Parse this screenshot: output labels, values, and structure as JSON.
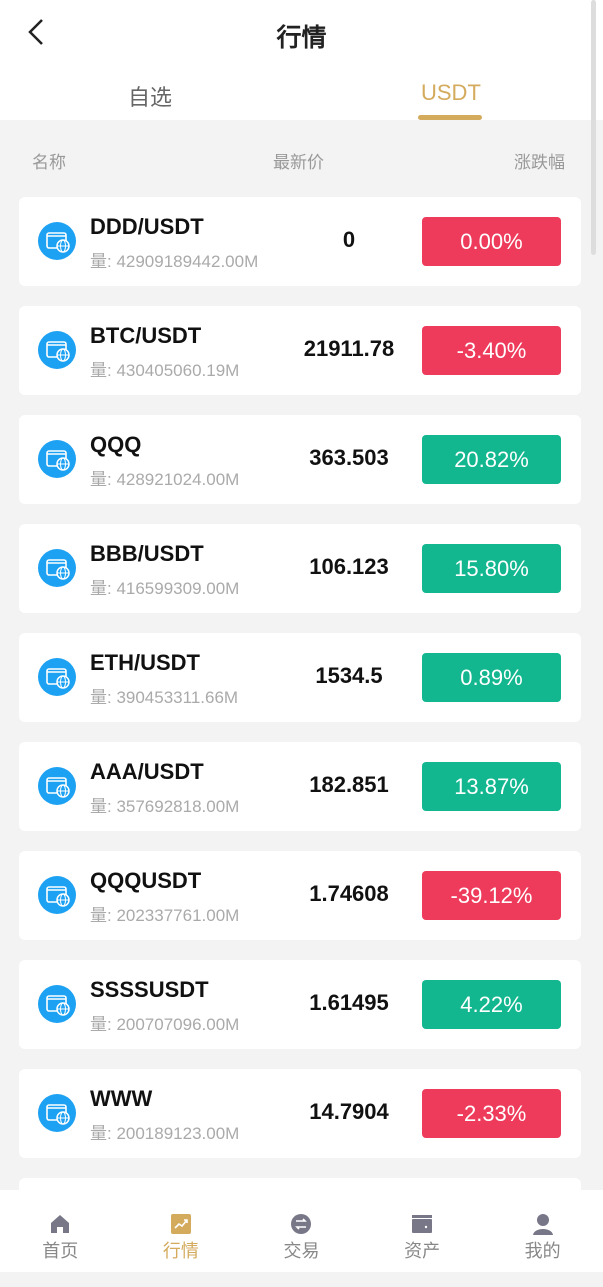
{
  "header": {
    "title": "行情",
    "tabs": [
      {
        "label": "自选",
        "active": false
      },
      {
        "label": "USDT",
        "active": true
      }
    ]
  },
  "columns": {
    "name": "名称",
    "price": "最新价",
    "change": "涨跌幅"
  },
  "colors": {
    "accent": "#d4aa5c",
    "up": "#12b78f",
    "down": "#ee3b5b",
    "icon": "#1da1f2"
  },
  "rows": [
    {
      "name": "DDD/USDT",
      "volume": "量: 42909189442.00M",
      "price": "0",
      "change": "0.00%",
      "dir": "down"
    },
    {
      "name": "BTC/USDT",
      "volume": "量: 430405060.19M",
      "price": "21911.78",
      "change": "-3.40%",
      "dir": "down"
    },
    {
      "name": "QQQ",
      "volume": "量: 428921024.00M",
      "price": "363.503",
      "change": "20.82%",
      "dir": "up"
    },
    {
      "name": "BBB/USDT",
      "volume": "量: 416599309.00M",
      "price": "106.123",
      "change": "15.80%",
      "dir": "up"
    },
    {
      "name": "ETH/USDT",
      "volume": "量: 390453311.66M",
      "price": "1534.5",
      "change": "0.89%",
      "dir": "up"
    },
    {
      "name": "AAA/USDT",
      "volume": "量: 357692818.00M",
      "price": "182.851",
      "change": "13.87%",
      "dir": "up"
    },
    {
      "name": "QQQUSDT",
      "volume": "量: 202337761.00M",
      "price": "1.74608",
      "change": "-39.12%",
      "dir": "down"
    },
    {
      "name": "SSSSUSDT",
      "volume": "量: 200707096.00M",
      "price": "1.61495",
      "change": "4.22%",
      "dir": "up"
    },
    {
      "name": "WWW",
      "volume": "量: 200189123.00M",
      "price": "14.7904",
      "change": "-2.33%",
      "dir": "down"
    }
  ],
  "nav": [
    {
      "label": "首页",
      "icon": "home-icon"
    },
    {
      "label": "行情",
      "icon": "chart-icon",
      "active": true
    },
    {
      "label": "交易",
      "icon": "exchange-icon"
    },
    {
      "label": "资产",
      "icon": "wallet-icon"
    },
    {
      "label": "我的",
      "icon": "user-icon"
    }
  ]
}
